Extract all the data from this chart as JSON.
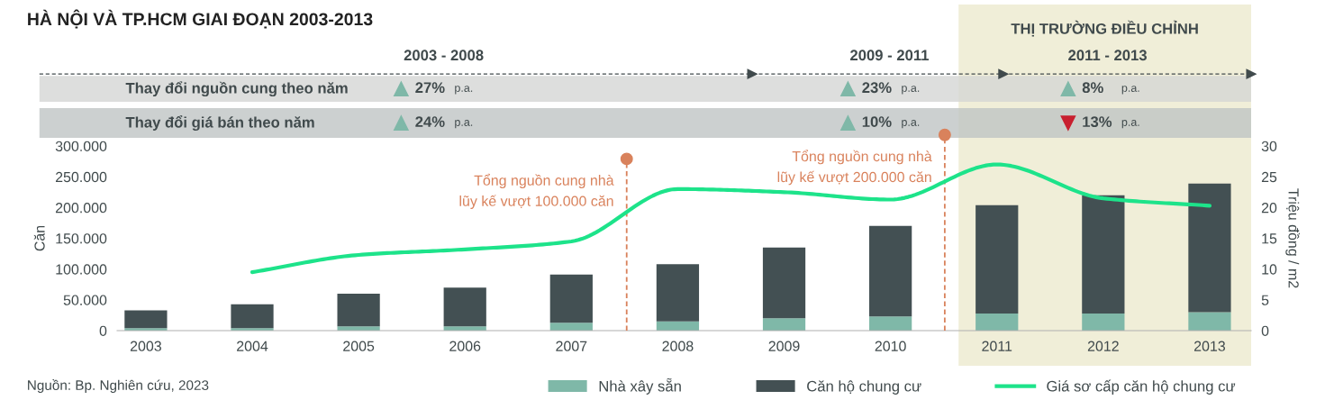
{
  "chart_data": {
    "type": "bar",
    "title": "HÀ NỘI VÀ TP.HCM GIAI ĐOẠN 2003-2013",
    "stacked": true,
    "ylabel": "Căn",
    "y2label": "Triệu đồng / m2",
    "x": [
      2003,
      2004,
      2005,
      2006,
      2007,
      2008,
      2009,
      2010,
      2011,
      2012,
      2013
    ],
    "xlim": [
      2002.73,
      2013.39
    ],
    "xticks": [
      2003,
      2004,
      2005,
      2006,
      2007,
      2008,
      2009,
      2010,
      2011,
      2012,
      2013
    ],
    "ylim": [
      0,
      300000
    ],
    "yticks": [
      {
        "value": 0,
        "label": "0"
      },
      {
        "value": 50000,
        "label": "50.000"
      },
      {
        "value": 100000,
        "label": "100.000"
      },
      {
        "value": 150000,
        "label": "150.000"
      },
      {
        "value": 200000,
        "label": "200.000"
      },
      {
        "value": 250000,
        "label": "250.000"
      },
      {
        "value": 300000,
        "label": "300.000"
      }
    ],
    "y2lim": [
      0,
      30
    ],
    "y2ticks": [
      0,
      5,
      10,
      15,
      20,
      25,
      30
    ],
    "series": [
      {
        "name": "Nhà xây sẵn",
        "color": "#7fb8a8",
        "values": [
          4000,
          4000,
          7000,
          7000,
          13000,
          15000,
          20000,
          23000,
          28000,
          28000,
          30000
        ]
      },
      {
        "name": "Căn hộ chung cư",
        "color": "#435053",
        "values": [
          29000,
          39000,
          53000,
          63000,
          78000,
          93000,
          115000,
          147000,
          176000,
          192000,
          209000
        ]
      },
      {
        "name": "Giá sơ cấp căn hộ chung cư",
        "type": "line",
        "axis": "y2",
        "color": "#1de38a",
        "values": [
          null,
          9.5,
          12.3,
          13.2,
          14.5,
          23,
          22.5,
          21.3,
          27,
          21.5,
          20.3
        ]
      }
    ],
    "ref_lines": [
      {
        "axis": "x",
        "value": 2007.52,
        "label": "Tổng nguồn cung nhà\nlũy kế vượt 100.000 căn",
        "color": "#d9825c",
        "line_style": "dashed"
      },
      {
        "axis": "x",
        "value": 2010.51,
        "label": "Tổng nguồn cung nhà\nlũy kế vượt 200.000 căn",
        "color": "#d9825c",
        "line_style": "dashed"
      }
    ],
    "bands": [
      {
        "axis": "x",
        "from": 2010.64,
        "to": 2013.39,
        "color": "#f0eed8"
      }
    ],
    "legend": "bottom right",
    "grid": false,
    "annotations": [
      "Nguồn: Bp. Nghiên cứu, 2023",
      "2003 - 2008",
      "2009 - 2011",
      "2011 - 2013",
      "Thay đổi nguồn cung theo năm",
      "Thay đổi giá bán theo năm",
      "27%",
      "23%",
      "8%",
      "24%",
      "10%",
      "13%",
      "p.a.",
      "THỊ TRƯỜNG ĐIỀU CHỈNH"
    ]
  }
}
